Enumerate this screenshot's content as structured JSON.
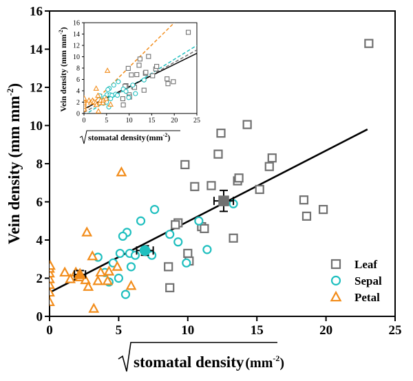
{
  "colors": {
    "leaf": "#707070",
    "sepal": "#1FBFBF",
    "petal": "#F28C1A",
    "fit": "#000000"
  },
  "chart_data": [
    {
      "type": "scatter",
      "xlabel_main": "stomatal density",
      "xlabel_unit": "(mm",
      "xlabel_exp": "-2",
      "xlabel_close": ")",
      "ylabel": "Vein density (mm mm",
      "ylabel_exp": "-2",
      "ylabel_close": ")",
      "xlim": [
        0,
        25
      ],
      "ylim": [
        0,
        16
      ],
      "xticks": [
        "0",
        "5",
        "10",
        "15",
        "20",
        "25"
      ],
      "yticks": [
        "0",
        "2",
        "4",
        "6",
        "8",
        "10",
        "12",
        "14",
        "16"
      ],
      "legend_position": "bottom-right",
      "series": [
        {
          "name": "Leaf",
          "marker": "square",
          "points": [
            [
              8.7,
              1.5
            ],
            [
              8.6,
              2.6
            ],
            [
              10.0,
              3.3
            ],
            [
              10.1,
              2.9
            ],
            [
              9.3,
              4.9
            ],
            [
              9.1,
              4.8
            ],
            [
              11.0,
              4.7
            ],
            [
              11.2,
              4.6
            ],
            [
              10.5,
              6.8
            ],
            [
              11.7,
              6.85
            ],
            [
              9.8,
              7.95
            ],
            [
              12.2,
              8.5
            ],
            [
              12.4,
              9.6
            ],
            [
              13.6,
              7.1
            ],
            [
              13.7,
              7.25
            ],
            [
              13.3,
              4.1
            ],
            [
              15.2,
              6.65
            ],
            [
              15.9,
              7.85
            ],
            [
              16.1,
              8.3
            ],
            [
              14.3,
              10.05
            ],
            [
              18.4,
              6.1
            ],
            [
              18.6,
              5.25
            ],
            [
              19.8,
              5.6
            ],
            [
              23.1,
              14.3
            ]
          ]
        },
        {
          "name": "Sepal",
          "marker": "circle",
          "points": [
            [
              3.5,
              3.1
            ],
            [
              4.0,
              2.3
            ],
            [
              4.3,
              1.8
            ],
            [
              5.0,
              2.0
            ],
            [
              5.5,
              1.15
            ],
            [
              5.1,
              3.3
            ],
            [
              5.6,
              4.4
            ],
            [
              5.3,
              4.2
            ],
            [
              5.8,
              3.3
            ],
            [
              6.2,
              3.2
            ],
            [
              6.6,
              5.0
            ],
            [
              7.0,
              3.4
            ],
            [
              7.4,
              3.2
            ],
            [
              7.6,
              5.6
            ],
            [
              8.7,
              4.3
            ],
            [
              9.3,
              3.9
            ],
            [
              9.9,
              2.8
            ],
            [
              10.8,
              5.0
            ],
            [
              11.4,
              3.5
            ],
            [
              13.3,
              5.9
            ],
            [
              5.9,
              2.6
            ],
            [
              4.6,
              2.8
            ]
          ]
        },
        {
          "name": "Petal",
          "marker": "triangle",
          "points": [
            [
              0.0,
              0.75
            ],
            [
              0.0,
              1.25
            ],
            [
              0.0,
              1.65
            ],
            [
              0.0,
              1.95
            ],
            [
              0.0,
              2.25
            ],
            [
              0.0,
              2.5
            ],
            [
              0.05,
              2.65
            ],
            [
              1.1,
              2.3
            ],
            [
              1.5,
              1.95
            ],
            [
              1.9,
              2.3
            ],
            [
              2.2,
              2.05
            ],
            [
              2.6,
              1.9
            ],
            [
              2.7,
              4.4
            ],
            [
              2.8,
              1.55
            ],
            [
              3.1,
              3.15
            ],
            [
              3.2,
              0.4
            ],
            [
              3.5,
              1.85
            ],
            [
              3.7,
              2.3
            ],
            [
              4.2,
              1.85
            ],
            [
              4.3,
              2.35
            ],
            [
              4.9,
              2.6
            ],
            [
              5.2,
              7.55
            ],
            [
              5.9,
              1.6
            ]
          ]
        }
      ],
      "means": [
        {
          "series": "Leaf",
          "x": 12.6,
          "y": 6.05,
          "xerr": 0.7,
          "yerr": 0.55
        },
        {
          "series": "Sepal",
          "x": 6.9,
          "y": 3.45,
          "xerr": 0.6,
          "yerr": 0.25
        },
        {
          "series": "Petal",
          "x": 2.2,
          "y": 2.2,
          "xerr": 0.4,
          "yerr": 0.2
        }
      ],
      "fit_line": {
        "x": [
          0,
          23.0
        ],
        "y": [
          1.25,
          9.8
        ]
      }
    },
    {
      "type": "scatter",
      "inset": true,
      "xlabel_main": "stomatal density",
      "xlabel_unit": "(mm",
      "xlabel_exp": "-2",
      "xlabel_close": ")",
      "ylabel": "Vein density (mm mm",
      "ylabel_exp": "-2",
      "ylabel_close": ")",
      "xlim": [
        0,
        25
      ],
      "ylim": [
        0,
        16
      ],
      "xticks": [
        "0",
        "5",
        "10",
        "15",
        "20",
        "25"
      ],
      "yticks": [
        "0",
        "2",
        "4",
        "6",
        "8",
        "10",
        "12",
        "14",
        "16"
      ],
      "fit_lines": [
        {
          "series": "Leaf",
          "style": "dashed",
          "x": [
            0,
            25
          ],
          "y": [
            0.2,
            11.2
          ]
        },
        {
          "series": "Sepal",
          "style": "dashed",
          "x": [
            0,
            25
          ],
          "y": [
            -0.3,
            12.0
          ]
        },
        {
          "series": "Petal",
          "style": "dashed",
          "x": [
            0,
            20
          ],
          "y": [
            0.3,
            16.0
          ]
        },
        {
          "series": "All",
          "style": "solid",
          "x": [
            0,
            25
          ],
          "y": [
            0.8,
            10.6
          ]
        }
      ]
    }
  ]
}
